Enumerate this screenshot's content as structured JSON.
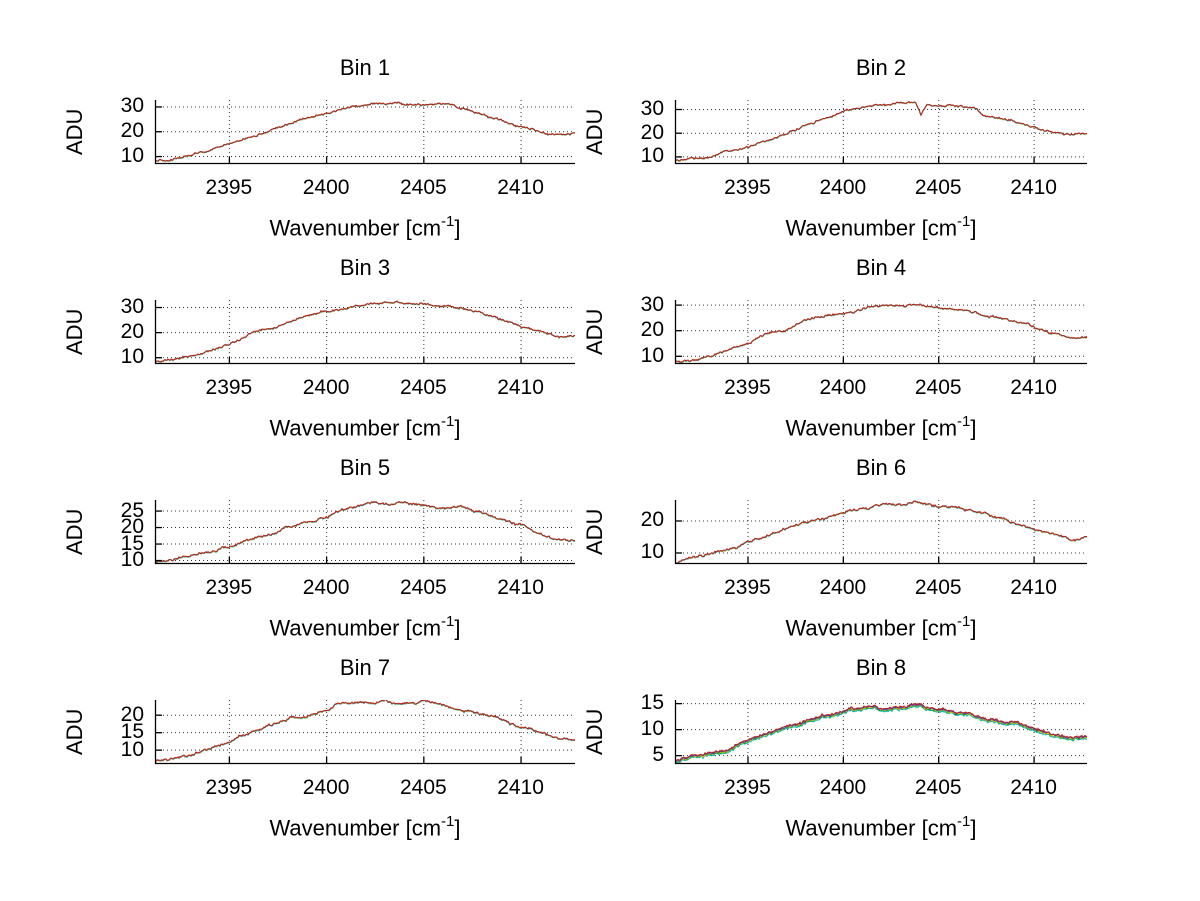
{
  "figure": {
    "background": "#ffffff",
    "text_color": "#000000",
    "axis_color": "#000000",
    "grid_color": "#333333",
    "grid_style": "dotted",
    "ylabel": "ADU",
    "xlabel_parts": {
      "base": "Wavenumber [cm",
      "sup": "-1",
      "close": "]"
    }
  },
  "chart_data": [
    {
      "type": "line",
      "title": "Bin 1",
      "xlabel": "Wavenumber [cm^-1]",
      "ylabel": "ADU",
      "xlim": [
        2391.2,
        2412.8
      ],
      "ylim": [
        6.8,
        32.6
      ],
      "xticks": [
        2395,
        2400,
        2405,
        2410
      ],
      "yticks": [
        10,
        20,
        30
      ],
      "x": [
        2391.2,
        2392,
        2393,
        2394,
        2395,
        2396,
        2397,
        2398,
        2399,
        2400,
        2401,
        2402,
        2403,
        2404,
        2405,
        2406,
        2407,
        2408,
        2409,
        2409.7,
        2410,
        2411,
        2412,
        2412.8
      ],
      "y": [
        8,
        8.8,
        10.3,
        12.3,
        14.8,
        17,
        20,
        22.8,
        25,
        27.2,
        29.3,
        30.6,
        31.6,
        30.8,
        30.4,
        30.9,
        29.4,
        27,
        24.5,
        22.8,
        22.2,
        19.6,
        18.4,
        19.2
      ],
      "noise": 0.55,
      "seed": 11,
      "series": [
        {
          "color": "#1f9e1f",
          "offset": -0.05
        },
        {
          "color": "#00b2b2",
          "offset": -0.12
        },
        {
          "color": "#3a3ad0",
          "offset": 0.0
        },
        {
          "color": "#d2c800",
          "offset": -0.02
        },
        {
          "color": "#b22222",
          "offset": 0.02
        }
      ]
    },
    {
      "type": "line",
      "title": "Bin 2",
      "xlabel": "Wavenumber [cm^-1]",
      "ylabel": "ADU",
      "xlim": [
        2391.2,
        2412.8
      ],
      "ylim": [
        6.8,
        33.8
      ],
      "xticks": [
        2395,
        2400,
        2405,
        2410
      ],
      "yticks": [
        10,
        20,
        30
      ],
      "x": [
        2391.2,
        2392,
        2393,
        2394,
        2395,
        2396,
        2397,
        2398,
        2399,
        2400,
        2401,
        2402,
        2403,
        2403.8,
        2404.1,
        2404.4,
        2405,
        2405.5,
        2406,
        2407,
        2407.4,
        2408,
        2409,
        2410,
        2411,
        2412,
        2412.8
      ],
      "y": [
        8,
        8.5,
        10,
        12,
        14,
        16.5,
        19.5,
        23,
        26,
        28.5,
        30.5,
        31.5,
        32.5,
        33,
        27.5,
        32,
        31,
        31.5,
        30.8,
        30.3,
        27.5,
        26.5,
        24.5,
        22,
        20.5,
        19.3,
        19.8
      ],
      "noise": 0.55,
      "seed": 22,
      "series": [
        {
          "color": "#1f9e1f",
          "offset": -0.05
        },
        {
          "color": "#00b2b2",
          "offset": -0.12
        },
        {
          "color": "#3a3ad0",
          "offset": 0.0
        },
        {
          "color": "#d2c800",
          "offset": -0.02
        },
        {
          "color": "#b22222",
          "offset": 0.02
        }
      ]
    },
    {
      "type": "line",
      "title": "Bin 3",
      "xlabel": "Wavenumber [cm^-1]",
      "ylabel": "ADU",
      "xlim": [
        2391.2,
        2412.8
      ],
      "ylim": [
        7.3,
        32.8
      ],
      "xticks": [
        2395,
        2400,
        2405,
        2410
      ],
      "yticks": [
        10,
        20,
        30
      ],
      "x": [
        2391.2,
        2392,
        2393,
        2394,
        2395,
        2396,
        2396.4,
        2397,
        2398,
        2399,
        2400,
        2401,
        2402,
        2403,
        2404,
        2405,
        2406,
        2407,
        2408,
        2409,
        2410,
        2411,
        2412,
        2412.8
      ],
      "y": [
        8,
        8.8,
        10.5,
        13,
        15.5,
        19,
        20.2,
        21.5,
        24,
        26,
        28.5,
        29,
        31,
        32,
        31.6,
        31,
        30.6,
        29.5,
        27.5,
        25,
        22,
        20,
        18.3,
        18.6
      ],
      "noise": 0.55,
      "seed": 33,
      "series": [
        {
          "color": "#1f9e1f",
          "offset": -0.05
        },
        {
          "color": "#00b2b2",
          "offset": -0.12
        },
        {
          "color": "#3a3ad0",
          "offset": 0.0
        },
        {
          "color": "#d2c800",
          "offset": -0.02
        },
        {
          "color": "#b22222",
          "offset": 0.02
        }
      ]
    },
    {
      "type": "line",
      "title": "Bin 4",
      "xlabel": "Wavenumber [cm^-1]",
      "ylabel": "ADU",
      "xlim": [
        2391.2,
        2412.8
      ],
      "ylim": [
        6.8,
        31.8
      ],
      "xticks": [
        2395,
        2400,
        2405,
        2410
      ],
      "yticks": [
        10,
        20,
        30
      ],
      "x": [
        2391.2,
        2392,
        2393,
        2394,
        2395,
        2396,
        2397,
        2398,
        2399,
        2400,
        2401,
        2402,
        2403,
        2404,
        2405,
        2406,
        2407,
        2408,
        2409,
        2410,
        2411,
        2412,
        2412.8
      ],
      "y": [
        7.8,
        8.4,
        10,
        12.5,
        15,
        18,
        20,
        23.5,
        25.5,
        26.8,
        28,
        29.6,
        29.4,
        30.8,
        29,
        28.4,
        27,
        25,
        23.5,
        21.5,
        18.8,
        17,
        17.8
      ],
      "noise": 0.55,
      "seed": 44,
      "series": [
        {
          "color": "#1f9e1f",
          "offset": -0.05
        },
        {
          "color": "#00b2b2",
          "offset": -0.12
        },
        {
          "color": "#3a3ad0",
          "offset": 0.0
        },
        {
          "color": "#d2c800",
          "offset": -0.02
        },
        {
          "color": "#b22222",
          "offset": 0.02
        }
      ]
    },
    {
      "type": "line",
      "title": "Bin 5",
      "xlabel": "Wavenumber [cm^-1]",
      "ylabel": "ADU",
      "xlim": [
        2391.2,
        2412.8
      ],
      "ylim": [
        8.8,
        28.2
      ],
      "xticks": [
        2395,
        2400,
        2405,
        2410
      ],
      "yticks": [
        10,
        15,
        20,
        25
      ],
      "x": [
        2391.2,
        2392,
        2393,
        2394,
        2395,
        2396,
        2397,
        2398,
        2399,
        2400,
        2401,
        2402,
        2403,
        2404,
        2405,
        2406,
        2407,
        2408,
        2409,
        2410,
        2411,
        2412,
        2412.8
      ],
      "y": [
        9.3,
        10,
        11,
        12.5,
        14,
        16,
        18,
        20,
        21.5,
        23,
        25.5,
        27,
        26.8,
        27.4,
        26.5,
        26,
        26,
        24,
        22,
        20.5,
        18,
        16.3,
        16.6
      ],
      "noise": 0.45,
      "seed": 55,
      "series": [
        {
          "color": "#1f9e1f",
          "offset": -0.05
        },
        {
          "color": "#00b2b2",
          "offset": -0.12
        },
        {
          "color": "#3a3ad0",
          "offset": 0.0
        },
        {
          "color": "#d2c800",
          "offset": -0.02
        },
        {
          "color": "#b22222",
          "offset": 0.02
        }
      ]
    },
    {
      "type": "line",
      "title": "Bin 6",
      "xlabel": "Wavenumber [cm^-1]",
      "ylabel": "ADU",
      "xlim": [
        2391.2,
        2412.8
      ],
      "ylim": [
        6.4,
        26.4
      ],
      "xticks": [
        2395,
        2400,
        2405,
        2410
      ],
      "yticks": [
        10,
        20
      ],
      "x": [
        2391.2,
        2392,
        2393,
        2394,
        2395,
        2396,
        2397,
        2398,
        2399,
        2400,
        2401,
        2402,
        2403,
        2404,
        2405,
        2406,
        2407,
        2408,
        2409,
        2410,
        2411,
        2412,
        2412.8
      ],
      "y": [
        7,
        8,
        9.5,
        11,
        13,
        15,
        17.5,
        19,
        20.5,
        22,
        23.5,
        24.6,
        25,
        25.6,
        24.6,
        24,
        22.5,
        20.8,
        19,
        17.5,
        16,
        14.3,
        14.9
      ],
      "noise": 0.5,
      "seed": 66,
      "series": [
        {
          "color": "#1f9e1f",
          "offset": -0.05
        },
        {
          "color": "#00b2b2",
          "offset": -0.12
        },
        {
          "color": "#3a3ad0",
          "offset": 0.0
        },
        {
          "color": "#d2c800",
          "offset": -0.02
        },
        {
          "color": "#b22222",
          "offset": 0.02
        }
      ]
    },
    {
      "type": "line",
      "title": "Bin 7",
      "xlabel": "Wavenumber [cm^-1]",
      "ylabel": "ADU",
      "xlim": [
        2391.2,
        2412.8
      ],
      "ylim": [
        5.9,
        24.2
      ],
      "xticks": [
        2395,
        2400,
        2405,
        2410
      ],
      "yticks": [
        10,
        15,
        20
      ],
      "x": [
        2391.2,
        2392,
        2393,
        2394,
        2395,
        2396,
        2397,
        2398,
        2399,
        2400,
        2400.6,
        2401,
        2402,
        2403,
        2404,
        2405,
        2406,
        2407,
        2408,
        2409,
        2410,
        2411,
        2412,
        2412.8
      ],
      "y": [
        6.8,
        7.3,
        8.5,
        10.5,
        12.5,
        14.5,
        16.5,
        18.5,
        20,
        21,
        22.8,
        23,
        23.1,
        23.6,
        23.1,
        23.3,
        22.4,
        21.5,
        20,
        18.5,
        16.6,
        15,
        13.4,
        13.1
      ],
      "noise": 0.45,
      "seed": 77,
      "series": [
        {
          "color": "#1f9e1f",
          "offset": -0.05
        },
        {
          "color": "#00b2b2",
          "offset": -0.12
        },
        {
          "color": "#3a3ad0",
          "offset": 0.0
        },
        {
          "color": "#d2c800",
          "offset": -0.02
        },
        {
          "color": "#b22222",
          "offset": 0.02
        }
      ]
    },
    {
      "type": "line",
      "title": "Bin 8",
      "xlabel": "Wavenumber [cm^-1]",
      "ylabel": "ADU",
      "xlim": [
        2391.2,
        2412.8
      ],
      "ylim": [
        3.3,
        15.6
      ],
      "xticks": [
        2395,
        2400,
        2405,
        2410
      ],
      "yticks": [
        5,
        10,
        15
      ],
      "x": [
        2391.2,
        2392,
        2393,
        2394,
        2395,
        2396,
        2397,
        2398,
        2399,
        2400,
        2400.4,
        2401,
        2402,
        2403,
        2404,
        2405,
        2406,
        2407,
        2408,
        2408.6,
        2409,
        2410,
        2411,
        2412,
        2412.8
      ],
      "y": [
        4,
        4.8,
        5.5,
        6.5,
        7.8,
        9.3,
        10.3,
        11.3,
        12.3,
        13.3,
        14,
        14,
        13.8,
        14.3,
        14.8,
        14,
        13.4,
        12.6,
        12,
        11.3,
        11.6,
        10.5,
        9.2,
        8.5,
        8.8
      ],
      "noise": 0.3,
      "seed": 88,
      "series": [
        {
          "color": "#00b2b2",
          "offset": -0.5
        },
        {
          "color": "#1f9e1f",
          "offset": -0.32
        },
        {
          "color": "#d2c800",
          "offset": -0.25
        },
        {
          "color": "#3a3ad0",
          "offset": -0.12
        },
        {
          "color": "#b22222",
          "offset": 0.0
        }
      ]
    }
  ]
}
